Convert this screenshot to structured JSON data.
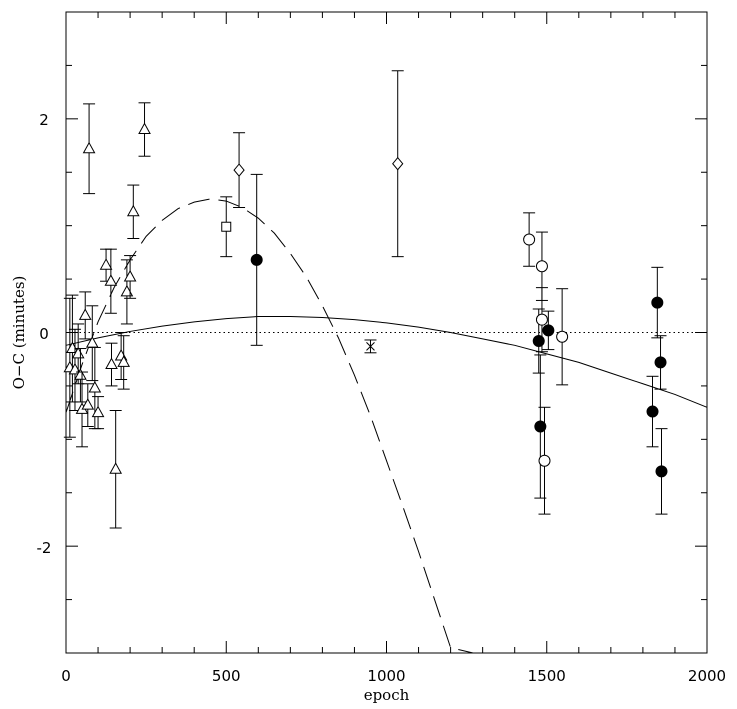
{
  "chart_data": {
    "type": "scatter",
    "title": "",
    "xlabel": "epoch",
    "ylabel": "O−C (minutes)",
    "xlim": [
      0,
      2000
    ],
    "ylim": [
      -3,
      3
    ],
    "x_ticks": [
      "0",
      "500",
      "1000",
      "1500",
      "2000"
    ],
    "y_ticks": [
      "-2",
      "0",
      "2"
    ],
    "colors": {
      "ink": "#000000",
      "background": "#ffffff"
    },
    "series": [
      {
        "marker": "open-triangle",
        "points": [
          {
            "x": 12,
            "y": -0.33,
            "err": 0.65
          },
          {
            "x": 20,
            "y": -0.15,
            "err": 0.5
          },
          {
            "x": 28,
            "y": -0.35,
            "err": 0.38
          },
          {
            "x": 38,
            "y": -0.2,
            "err": 0.28
          },
          {
            "x": 45,
            "y": -0.4,
            "err": 0.25
          },
          {
            "x": 50,
            "y": -0.72,
            "err": 0.35
          },
          {
            "x": 60,
            "y": 0.16,
            "err": 0.22
          },
          {
            "x": 68,
            "y": -0.68,
            "err": 0.2
          },
          {
            "x": 72,
            "y": 1.72,
            "err": 0.42
          },
          {
            "x": 82,
            "y": -0.1,
            "err": 0.35
          },
          {
            "x": 90,
            "y": -0.52,
            "err": 0.38
          },
          {
            "x": 100,
            "y": -0.75,
            "err": 0.15
          },
          {
            "x": 125,
            "y": 0.63,
            "err": 0.15
          },
          {
            "x": 140,
            "y": 0.48,
            "err": 0.3
          },
          {
            "x": 142,
            "y": -0.3,
            "err": 0.2
          },
          {
            "x": 155,
            "y": -1.28,
            "err": 0.55
          },
          {
            "x": 172,
            "y": -0.22,
            "err": 0.22
          },
          {
            "x": 180,
            "y": -0.28,
            "err": 0.25
          },
          {
            "x": 190,
            "y": 0.38,
            "err": 0.3
          },
          {
            "x": 200,
            "y": 0.52,
            "err": 0.2
          },
          {
            "x": 210,
            "y": 1.13,
            "err": 0.25
          },
          {
            "x": 245,
            "y": 1.9,
            "err": 0.25
          }
        ]
      },
      {
        "marker": "open-square",
        "points": [
          {
            "x": 500,
            "y": 0.99,
            "err": 0.28
          }
        ]
      },
      {
        "marker": "open-diamond",
        "points": [
          {
            "x": 540,
            "y": 1.52,
            "err": 0.35
          },
          {
            "x": 1035,
            "y": 1.58,
            "err": 0.87
          }
        ]
      },
      {
        "marker": "filled-circle",
        "points": [
          {
            "x": 595,
            "y": 0.68,
            "err": 0.8
          },
          {
            "x": 1475,
            "y": -0.08,
            "err": 0.3
          },
          {
            "x": 1480,
            "y": -0.88,
            "err": 0.67
          },
          {
            "x": 1505,
            "y": 0.02,
            "err": 0.18
          },
          {
            "x": 1830,
            "y": -0.74,
            "err": 0.33
          },
          {
            "x": 1845,
            "y": 0.28,
            "err": 0.33
          },
          {
            "x": 1855,
            "y": -0.28,
            "err": 0.25
          },
          {
            "x": 1858,
            "y": -1.3,
            "err": 0.4
          }
        ]
      },
      {
        "marker": "open-circle",
        "points": [
          {
            "x": 1445,
            "y": 0.87,
            "err": 0.25
          },
          {
            "x": 1485,
            "y": 0.62,
            "err": 0.32
          },
          {
            "x": 1485,
            "y": 0.12,
            "err": 0.3
          },
          {
            "x": 1493,
            "y": -1.2,
            "err": 0.5
          },
          {
            "x": 1548,
            "y": -0.04,
            "err": 0.45
          }
        ]
      },
      {
        "marker": "cross",
        "points": [
          {
            "x": 950,
            "y": -0.13,
            "err": 0.06
          }
        ]
      }
    ],
    "curves": [
      {
        "style": "solid",
        "points": [
          [
            0,
            -0.12
          ],
          [
            100,
            -0.05
          ],
          [
            200,
            0.01
          ],
          [
            300,
            0.06
          ],
          [
            400,
            0.1
          ],
          [
            500,
            0.13
          ],
          [
            600,
            0.15
          ],
          [
            700,
            0.15
          ],
          [
            800,
            0.14
          ],
          [
            900,
            0.12
          ],
          [
            1000,
            0.09
          ],
          [
            1100,
            0.05
          ],
          [
            1200,
            0.0
          ],
          [
            1300,
            -0.06
          ],
          [
            1400,
            -0.12
          ],
          [
            1500,
            -0.2
          ],
          [
            1600,
            -0.28
          ],
          [
            1700,
            -0.38
          ],
          [
            1800,
            -0.48
          ],
          [
            1900,
            -0.58
          ],
          [
            2000,
            -0.7
          ]
        ]
      },
      {
        "style": "dashed",
        "points": [
          [
            0,
            -0.75
          ],
          [
            50,
            -0.3
          ],
          [
            100,
            0.1
          ],
          [
            150,
            0.42
          ],
          [
            200,
            0.68
          ],
          [
            250,
            0.9
          ],
          [
            300,
            1.05
          ],
          [
            350,
            1.16
          ],
          [
            400,
            1.22
          ],
          [
            450,
            1.25
          ],
          [
            500,
            1.23
          ],
          [
            550,
            1.17
          ],
          [
            600,
            1.07
          ],
          [
            650,
            0.93
          ],
          [
            700,
            0.74
          ],
          [
            750,
            0.52
          ],
          [
            800,
            0.25
          ],
          [
            850,
            -0.05
          ],
          [
            900,
            -0.4
          ],
          [
            950,
            -0.78
          ],
          [
            1000,
            -1.2
          ],
          [
            1050,
            -1.62
          ],
          [
            1100,
            -2.05
          ],
          [
            1150,
            -2.5
          ],
          [
            1200,
            -2.95
          ],
          [
            1270,
            -3.0
          ]
        ]
      },
      {
        "style": "dotted",
        "points": [
          [
            0,
            0
          ],
          [
            2000,
            0
          ]
        ]
      }
    ]
  }
}
